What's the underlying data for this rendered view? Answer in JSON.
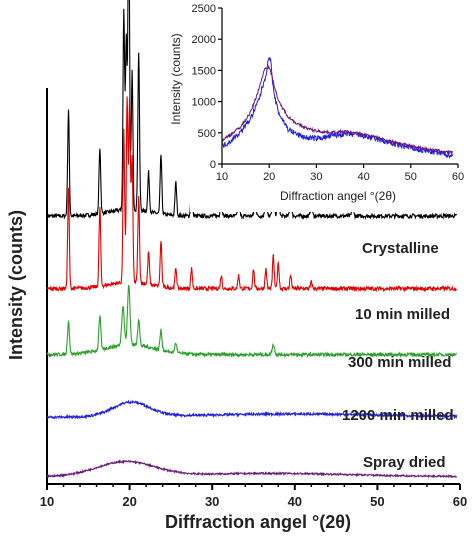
{
  "chart_data": [
    {
      "type": "line",
      "title": "",
      "xlabel": "Diffraction angel °(2θ)",
      "ylabel": "Intensity (counts)",
      "xlim": [
        10,
        60
      ],
      "xticks": [
        10,
        20,
        30,
        40,
        50,
        60
      ],
      "yaxis_ticks": false,
      "grid": false,
      "legend": "none (series labelled directly on plot)",
      "series": [
        {
          "name": "Crystalline",
          "color": "#000000",
          "baseline_offset": 4,
          "noise": 0.06,
          "broad_hump": [
            [
              20,
              2.5,
              0.1
            ]
          ],
          "peaks": [
            [
              12.6,
              0.1,
              1.6
            ],
            [
              16.4,
              0.1,
              1.0
            ],
            [
              19.3,
              0.1,
              3.0
            ],
            [
              19.6,
              0.1,
              2.6
            ],
            [
              19.9,
              0.1,
              4.5
            ],
            [
              20.3,
              0.1,
              2.1
            ],
            [
              21.1,
              0.1,
              2.4
            ],
            [
              22.3,
              0.1,
              0.6
            ],
            [
              23.8,
              0.1,
              0.9
            ],
            [
              25.6,
              0.1,
              0.5
            ],
            [
              27.5,
              0.1,
              0.4
            ],
            [
              31.1,
              0.1,
              0.3
            ],
            [
              33.2,
              0.1,
              0.3
            ],
            [
              35.2,
              0.1,
              0.3
            ],
            [
              36.5,
              0.1,
              0.4
            ],
            [
              37.4,
              0.1,
              0.8
            ],
            [
              38.0,
              0.1,
              0.5
            ],
            [
              39.5,
              0.1,
              0.3
            ],
            [
              42.0,
              0.1,
              0.2
            ],
            [
              47.0,
              0.1,
              0.15
            ]
          ]
        },
        {
          "name": "10 min milled",
          "color": "#e30000",
          "baseline_offset": 2.9,
          "noise": 0.06,
          "broad_hump": [
            [
              20,
              2.5,
              0.1
            ]
          ],
          "peaks": [
            [
              12.6,
              0.1,
              1.5
            ],
            [
              16.4,
              0.1,
              1.2
            ],
            [
              19.3,
              0.1,
              2.3
            ],
            [
              19.7,
              0.1,
              2.8
            ],
            [
              20.0,
              0.1,
              2.7
            ],
            [
              20.3,
              0.1,
              1.9
            ],
            [
              21.1,
              0.1,
              1.3
            ],
            [
              22.3,
              0.1,
              0.5
            ],
            [
              23.8,
              0.1,
              0.7
            ],
            [
              25.6,
              0.1,
              0.3
            ],
            [
              27.5,
              0.1,
              0.3
            ],
            [
              31.1,
              0.1,
              0.2
            ],
            [
              33.2,
              0.1,
              0.2
            ],
            [
              35.0,
              0.1,
              0.3
            ],
            [
              36.5,
              0.1,
              0.3
            ],
            [
              37.4,
              0.1,
              0.5
            ],
            [
              38.0,
              0.1,
              0.4
            ],
            [
              39.5,
              0.1,
              0.2
            ],
            [
              42.0,
              0.1,
              0.1
            ]
          ]
        },
        {
          "name": "300 min milled",
          "color": "#2ca02c",
          "baseline_offset": 1.9,
          "noise": 0.05,
          "broad_hump": [
            [
              20,
              3.0,
              0.15
            ]
          ],
          "peaks": [
            [
              12.6,
              0.12,
              0.5
            ],
            [
              16.4,
              0.12,
              0.5
            ],
            [
              19.2,
              0.15,
              0.6
            ],
            [
              19.9,
              0.15,
              0.9
            ],
            [
              21.1,
              0.12,
              0.4
            ],
            [
              23.8,
              0.12,
              0.3
            ],
            [
              25.6,
              0.12,
              0.15
            ],
            [
              37.4,
              0.15,
              0.15
            ]
          ]
        },
        {
          "name": "1200 min milled",
          "color": "#1f1fdd",
          "baseline_offset": 0.95,
          "noise": 0.035,
          "broad_hump": [
            [
              20.2,
              2.2,
              0.22
            ],
            [
              40,
              12,
              0.05
            ]
          ],
          "peaks": []
        },
        {
          "name": "Spray dried",
          "color": "#6a1b7a",
          "baseline_offset": 0.05,
          "noise": 0.025,
          "broad_hump": [
            [
              19.5,
              3.5,
              0.22
            ],
            [
              37,
              10,
              0.05
            ]
          ],
          "peaks": []
        }
      ]
    },
    {
      "type": "line",
      "title": "",
      "xlabel": "Diffraction angel °(2θ)",
      "ylabel": "Intensity (counts)",
      "xlim": [
        10,
        60
      ],
      "ylim": [
        0,
        2500
      ],
      "xticks": [
        10,
        20,
        30,
        40,
        50,
        60
      ],
      "yticks": [
        0,
        500,
        1000,
        1500,
        2000,
        2500
      ],
      "grid": false,
      "series": [
        {
          "color": "#1f1fdd",
          "x": [
            10,
            12,
            14,
            16,
            17,
            18,
            19,
            19.5,
            20,
            20.3,
            21,
            22,
            24,
            26,
            28,
            30,
            32,
            34,
            36,
            38,
            40,
            42,
            44,
            46,
            48,
            50,
            52,
            54,
            56,
            58,
            59
          ],
          "y": [
            280,
            380,
            520,
            720,
            880,
            1080,
            1350,
            1500,
            1750,
            1650,
            1120,
            820,
            560,
            470,
            420,
            410,
            430,
            460,
            480,
            470,
            450,
            410,
            370,
            330,
            290,
            260,
            220,
            200,
            175,
            150,
            140
          ]
        },
        {
          "color": "#6a1b7a",
          "x": [
            10,
            12,
            14,
            16,
            17,
            18,
            19,
            20,
            21,
            22,
            24,
            26,
            28,
            30,
            32,
            34,
            36,
            38,
            40,
            42,
            44,
            46,
            48,
            50,
            52,
            54,
            56,
            58,
            59
          ],
          "y": [
            380,
            480,
            600,
            820,
            1020,
            1250,
            1520,
            1560,
            1280,
            1000,
            760,
            640,
            570,
            530,
            510,
            505,
            520,
            500,
            470,
            440,
            400,
            360,
            320,
            290,
            260,
            230,
            210,
            190,
            180
          ]
        }
      ]
    }
  ]
}
